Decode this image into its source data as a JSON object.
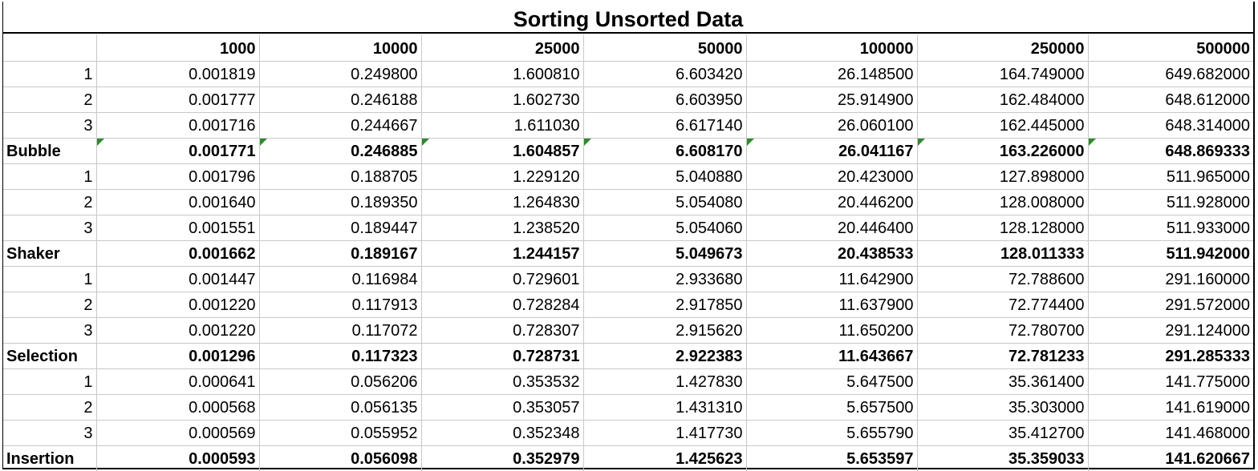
{
  "title": "Sorting Unsorted Data",
  "columns": [
    "1000",
    "10000",
    "25000",
    "50000",
    "100000",
    "250000",
    "500000"
  ],
  "groups": [
    {
      "name": "Bubble",
      "runs": [
        {
          "label": "1",
          "values": [
            "0.001819",
            "0.249800",
            "1.600810",
            "6.603420",
            "26.148500",
            "164.749000",
            "649.682000"
          ]
        },
        {
          "label": "2",
          "values": [
            "0.001777",
            "0.246188",
            "1.602730",
            "6.603950",
            "25.914900",
            "162.484000",
            "648.612000"
          ]
        },
        {
          "label": "3",
          "values": [
            "0.001716",
            "0.244667",
            "1.611030",
            "6.617140",
            "26.060100",
            "162.445000",
            "648.314000"
          ]
        }
      ],
      "average": [
        "0.001771",
        "0.246885",
        "1.604857",
        "6.608170",
        "26.041167",
        "163.226000",
        "648.869333"
      ]
    },
    {
      "name": "Shaker",
      "runs": [
        {
          "label": "1",
          "values": [
            "0.001796",
            "0.188705",
            "1.229120",
            "5.040880",
            "20.423000",
            "127.898000",
            "511.965000"
          ]
        },
        {
          "label": "2",
          "values": [
            "0.001640",
            "0.189350",
            "1.264830",
            "5.054080",
            "20.446200",
            "128.008000",
            "511.928000"
          ]
        },
        {
          "label": "3",
          "values": [
            "0.001551",
            "0.189447",
            "1.238520",
            "5.054060",
            "20.446400",
            "128.128000",
            "511.933000"
          ]
        }
      ],
      "average": [
        "0.001662",
        "0.189167",
        "1.244157",
        "5.049673",
        "20.438533",
        "128.011333",
        "511.942000"
      ]
    },
    {
      "name": "Selection",
      "runs": [
        {
          "label": "1",
          "values": [
            "0.001447",
            "0.116984",
            "0.729601",
            "2.933680",
            "11.642900",
            "72.788600",
            "291.160000"
          ]
        },
        {
          "label": "2",
          "values": [
            "0.001220",
            "0.117913",
            "0.728284",
            "2.917850",
            "11.637900",
            "72.774400",
            "291.572000"
          ]
        },
        {
          "label": "3",
          "values": [
            "0.001220",
            "0.117072",
            "0.728307",
            "2.915620",
            "11.650200",
            "72.780700",
            "291.124000"
          ]
        }
      ],
      "average": [
        "0.001296",
        "0.117323",
        "0.728731",
        "2.922383",
        "11.643667",
        "72.781233",
        "291.285333"
      ]
    },
    {
      "name": "Insertion",
      "runs": [
        {
          "label": "1",
          "values": [
            "0.000641",
            "0.056206",
            "0.353532",
            "1.427830",
            "5.647500",
            "35.361400",
            "141.775000"
          ]
        },
        {
          "label": "2",
          "values": [
            "0.000568",
            "0.056135",
            "0.353057",
            "1.431310",
            "5.657500",
            "35.303000",
            "141.619000"
          ]
        },
        {
          "label": "3",
          "values": [
            "0.000569",
            "0.055952",
            "0.352348",
            "1.417730",
            "5.655790",
            "35.412700",
            "141.468000"
          ]
        }
      ],
      "average": [
        "0.000593",
        "0.056098",
        "0.352979",
        "1.425623",
        "5.653597",
        "35.359033",
        "141.620667"
      ]
    }
  ]
}
